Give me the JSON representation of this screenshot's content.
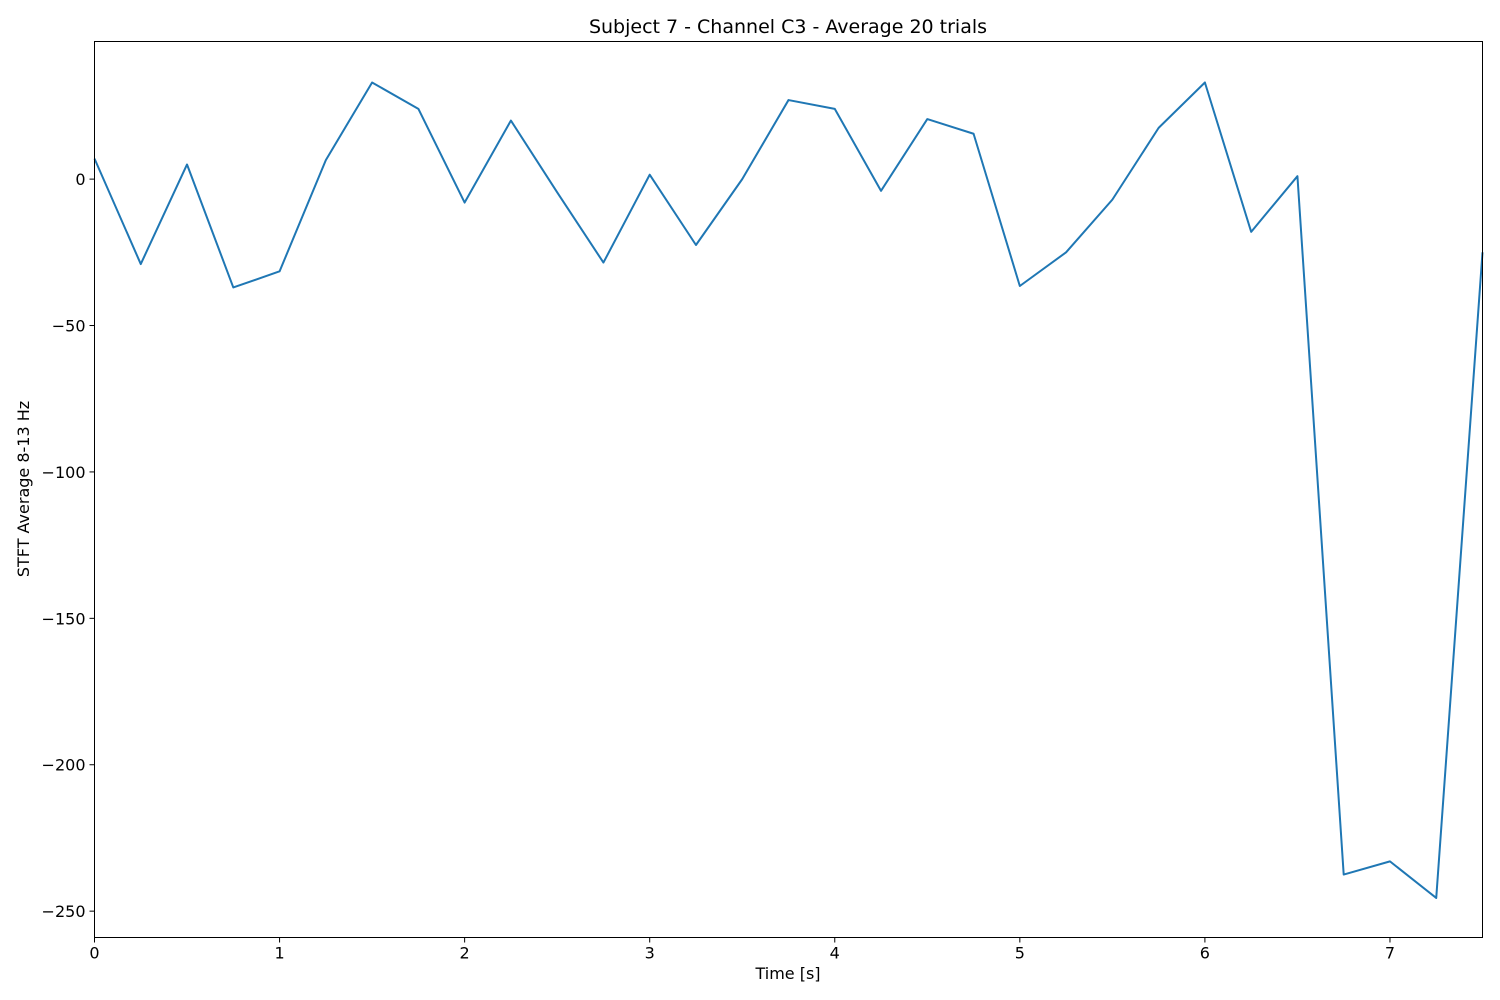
{
  "chart_data": {
    "type": "line",
    "title": "Subject 7 - Channel C3 - Average 20 trials",
    "xlabel": "Time [s]",
    "ylabel": "STFT Average 8-13 Hz",
    "xlim": [
      0,
      7.5
    ],
    "ylim": [
      -259,
      47
    ],
    "x_ticks": [
      0,
      1,
      2,
      3,
      4,
      5,
      6,
      7
    ],
    "x_tick_labels": [
      "0",
      "1",
      "2",
      "3",
      "4",
      "5",
      "6",
      "7"
    ],
    "y_ticks": [
      0,
      -50,
      -100,
      -150,
      -200,
      -250
    ],
    "y_tick_labels": [
      "0",
      "−50",
      "−100",
      "−150",
      "−200",
      "−250"
    ],
    "grid": false,
    "line_color": "#1f77b4",
    "series": [
      {
        "x": [
          0,
          0.25,
          0.5,
          0.75,
          1.0,
          1.25,
          1.5,
          1.75,
          2.0,
          2.25,
          2.5,
          2.75,
          3.0,
          3.25,
          3.5,
          3.75,
          4.0,
          4.25,
          4.5,
          4.75,
          5.0,
          5.25,
          5.5,
          5.75,
          6.0,
          6.25,
          6.5,
          6.75,
          7.0,
          7.25,
          7.5
        ],
        "y": [
          7,
          -29,
          5,
          -37,
          -31.5,
          6.5,
          33,
          24,
          -8,
          20,
          -4.5,
          -28.5,
          1.5,
          -22.5,
          0,
          27,
          24,
          -4,
          20.5,
          15.5,
          -36.5,
          -25,
          -7,
          17.5,
          33,
          -18,
          1,
          -237.5,
          -233,
          -245.5,
          -25
        ]
      }
    ]
  }
}
